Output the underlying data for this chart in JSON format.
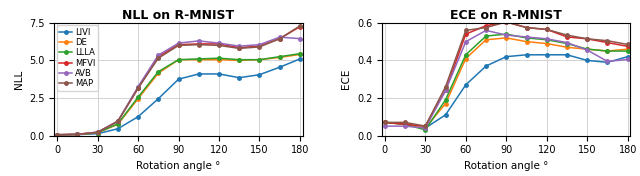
{
  "x": [
    0,
    15,
    30,
    45,
    60,
    75,
    90,
    105,
    120,
    135,
    150,
    165,
    180
  ],
  "nll": {
    "LIVI": [
      0.05,
      0.06,
      0.12,
      0.45,
      1.25,
      2.45,
      3.75,
      4.1,
      4.1,
      3.85,
      4.05,
      4.55,
      5.1
    ],
    "DE": [
      0.05,
      0.07,
      0.18,
      0.75,
      2.45,
      4.15,
      5.05,
      5.05,
      5.05,
      5.0,
      5.05,
      5.2,
      5.4
    ],
    "LLLA": [
      0.05,
      0.07,
      0.18,
      0.78,
      2.55,
      4.25,
      5.05,
      5.1,
      5.15,
      5.05,
      5.05,
      5.25,
      5.45
    ],
    "MFVI": [
      0.05,
      0.08,
      0.22,
      0.95,
      3.15,
      5.25,
      6.05,
      6.1,
      6.1,
      5.85,
      5.95,
      6.45,
      7.25
    ],
    "AVB": [
      0.05,
      0.08,
      0.22,
      0.95,
      3.25,
      5.35,
      6.15,
      6.3,
      6.15,
      5.95,
      6.05,
      6.55,
      6.45
    ],
    "MAP": [
      0.05,
      0.08,
      0.22,
      0.95,
      3.15,
      5.15,
      6.0,
      6.05,
      6.0,
      5.8,
      5.9,
      6.45,
      7.3
    ]
  },
  "ece": {
    "LIVI": [
      0.07,
      0.06,
      0.04,
      0.11,
      0.27,
      0.37,
      0.42,
      0.43,
      0.43,
      0.43,
      0.4,
      0.39,
      0.42
    ],
    "DE": [
      0.07,
      0.06,
      0.04,
      0.17,
      0.41,
      0.51,
      0.52,
      0.5,
      0.49,
      0.47,
      0.46,
      0.45,
      0.46
    ],
    "LLLA": [
      0.07,
      0.06,
      0.03,
      0.19,
      0.43,
      0.53,
      0.54,
      0.52,
      0.51,
      0.49,
      0.46,
      0.45,
      0.45
    ],
    "MFVI": [
      0.07,
      0.06,
      0.05,
      0.24,
      0.54,
      0.585,
      0.605,
      0.575,
      0.565,
      0.525,
      0.515,
      0.495,
      0.475
    ],
    "AVB": [
      0.05,
      0.05,
      0.04,
      0.24,
      0.5,
      0.56,
      0.535,
      0.525,
      0.515,
      0.495,
      0.455,
      0.395,
      0.405
    ],
    "MAP": [
      0.07,
      0.07,
      0.05,
      0.26,
      0.56,
      0.575,
      0.605,
      0.575,
      0.565,
      0.535,
      0.515,
      0.505,
      0.485
    ]
  },
  "colors": {
    "LIVI": "#1f77b4",
    "DE": "#ff7f0e",
    "LLLA": "#2ca02c",
    "MFVI": "#d62728",
    "AVB": "#9467bd",
    "MAP": "#8c564b"
  },
  "nll_ylim": [
    0,
    7.5
  ],
  "nll_yticks": [
    0.0,
    2.5,
    5.0,
    7.5
  ],
  "ece_ylim": [
    0,
    0.6
  ],
  "ece_yticks": [
    0.0,
    0.2,
    0.4,
    0.6
  ],
  "xticks": [
    0,
    30,
    60,
    90,
    120,
    150,
    180
  ],
  "xlabel": "Rotation angle °",
  "nll_ylabel": "NLL",
  "ece_ylabel": "ECE",
  "nll_title": "NLL on R-MNIST",
  "ece_title": "ECE on R-MNIST",
  "methods": [
    "LIVI",
    "DE",
    "LLLA",
    "MFVI",
    "AVB",
    "MAP"
  ]
}
